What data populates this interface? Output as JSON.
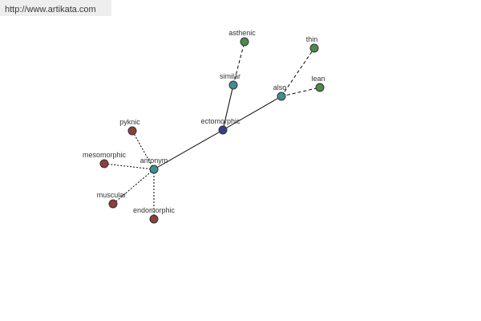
{
  "header": {
    "url": "http://www.artikata.com"
  },
  "nodes": [
    {
      "label": "ectomorphic"
    },
    {
      "label": "similar"
    },
    {
      "label": "asthenic"
    },
    {
      "label": "also"
    },
    {
      "label": "thin"
    },
    {
      "label": "lean"
    },
    {
      "label": "antonym"
    },
    {
      "label": "pyknic"
    },
    {
      "label": "mesomorphic"
    },
    {
      "label": "muscular"
    },
    {
      "label": "endomorphic"
    }
  ]
}
